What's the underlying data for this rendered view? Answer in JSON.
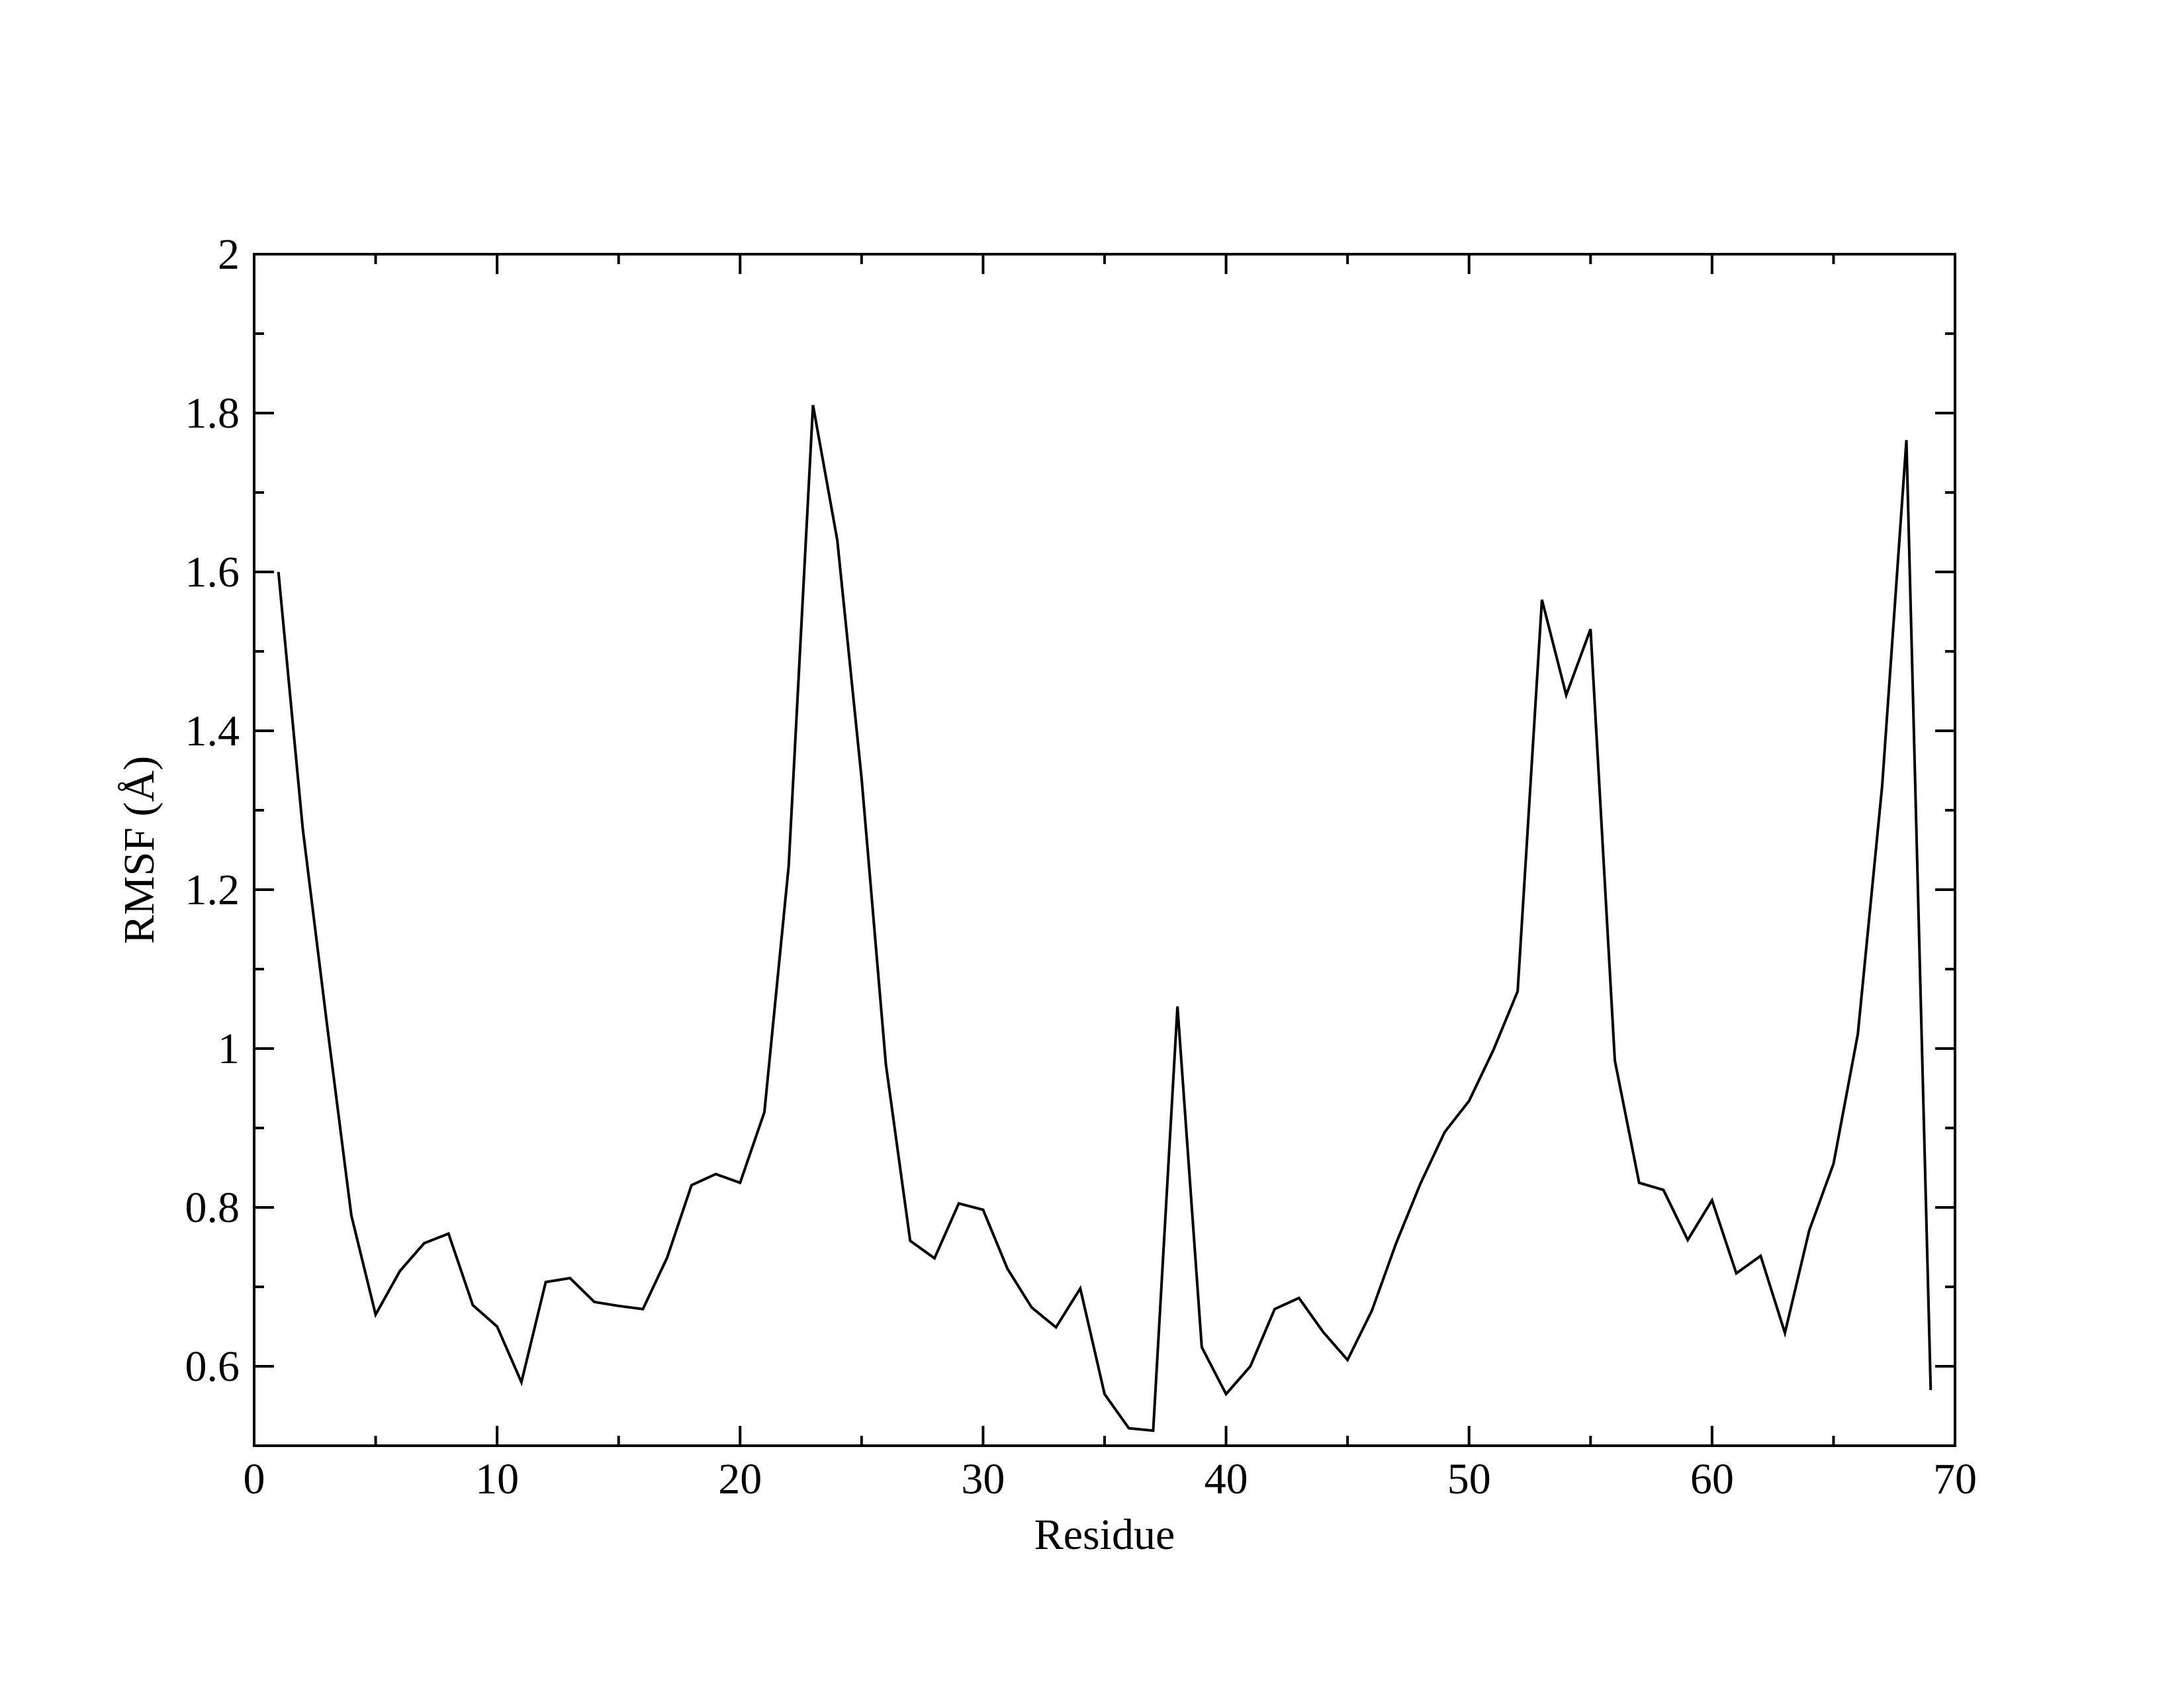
{
  "chart_data": {
    "type": "line",
    "x_label": "Residue",
    "y_label": "RMSF (Å)",
    "x": [
      1,
      2,
      3,
      4,
      5,
      6,
      7,
      8,
      9,
      10,
      11,
      12,
      13,
      14,
      15,
      16,
      17,
      18,
      19,
      20,
      21,
      22,
      23,
      24,
      25,
      26,
      27,
      28,
      29,
      30,
      31,
      32,
      33,
      34,
      35,
      36,
      37,
      38,
      39,
      40,
      41,
      42,
      43,
      44,
      45,
      46,
      47,
      48,
      49,
      50,
      51,
      52,
      53,
      54,
      55,
      56,
      57,
      58,
      59,
      60,
      61,
      62,
      63,
      64,
      65,
      66,
      67,
      68,
      69
    ],
    "series": [
      {
        "color": "#000000",
        "values": [
          1.6,
          1.277,
          1.03,
          0.79,
          0.665,
          0.72,
          0.755,
          0.767,
          0.677,
          0.65,
          0.58,
          0.706,
          0.711,
          0.681,
          0.676,
          0.672,
          0.737,
          0.828,
          0.842,
          0.831,
          0.92,
          1.23,
          1.81,
          1.64,
          1.34,
          0.98,
          0.758,
          0.736,
          0.805,
          0.797,
          0.723,
          0.674,
          0.649,
          0.698,
          0.565,
          0.522,
          0.519,
          1.053,
          0.624,
          0.565,
          0.6,
          0.672,
          0.686,
          0.643,
          0.608,
          0.67,
          0.755,
          0.83,
          0.895,
          0.934,
          0.998,
          1.072,
          1.565,
          1.445,
          1.528,
          0.985,
          0.831,
          0.822,
          0.759,
          0.809,
          0.717,
          0.739,
          0.642,
          0.771,
          0.855,
          1.018,
          1.33,
          1.766,
          0.57
        ]
      }
    ],
    "xlim": [
      0,
      70
    ],
    "xticks": [
      0,
      10,
      20,
      30,
      40,
      50,
      60,
      70
    ],
    "xminorticks": [
      5,
      15,
      25,
      35,
      45,
      55,
      65
    ],
    "ylim": [
      0.5,
      2
    ],
    "yticks": [
      0.6,
      0.8,
      1,
      1.2,
      1.4,
      1.6,
      1.8,
      2
    ],
    "yminorticks": [
      0.5,
      0.7,
      0.9,
      1.1,
      1.3,
      1.5,
      1.7,
      1.9
    ],
    "grid": false
  }
}
